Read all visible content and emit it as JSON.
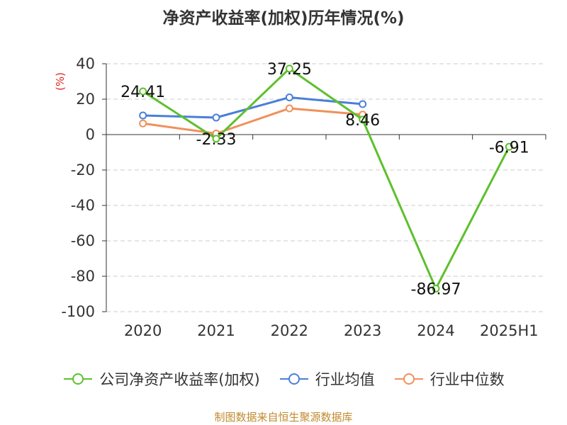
{
  "chart_data": {
    "type": "line",
    "title": "净资产收益率(加权)历年情况(%)",
    "unit_label": "(%)",
    "categories": [
      "2020",
      "2021",
      "2022",
      "2023",
      "2024",
      "2025H1"
    ],
    "ylim": [
      -100,
      40
    ],
    "yticks": [
      40,
      20,
      0,
      -20,
      -40,
      -60,
      -80,
      -100
    ],
    "grid": true,
    "legend_position": "bottom",
    "series": [
      {
        "name": "公司净资产收益率(加权)",
        "color": "#5dc02c",
        "values": [
          24.41,
          -2.33,
          37.25,
          8.46,
          -86.97,
          -6.91
        ],
        "labels": [
          "24.41",
          "-2.33",
          "37.25",
          "8.46",
          "-86.97",
          "-6.91"
        ]
      },
      {
        "name": "行业均值",
        "color": "#4a7fd8",
        "values": [
          10.8,
          9.6,
          21.0,
          17.2,
          null,
          null
        ]
      },
      {
        "name": "行业中位数",
        "color": "#f0905a",
        "values": [
          6.3,
          0.6,
          14.8,
          11.3,
          null,
          null
        ]
      }
    ]
  },
  "source": "制图数据来自恒生聚源数据库"
}
